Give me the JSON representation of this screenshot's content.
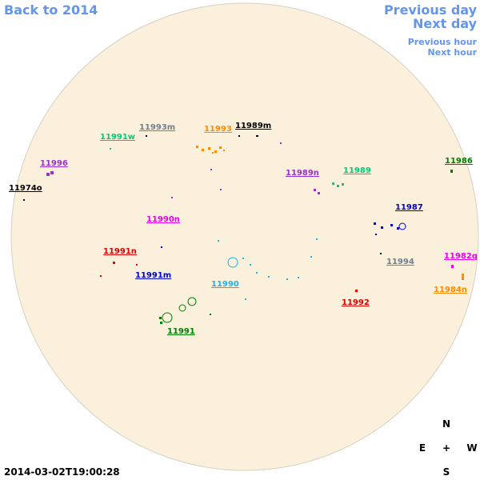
{
  "nav": {
    "back": "Back to 2014",
    "previous_day": "Previous day",
    "next_day": "Next day",
    "previous_hour": "Previous hour",
    "next_hour": "Next hour"
  },
  "regions": [
    "11993m",
    "11993",
    "11989m",
    "11991w",
    "11996",
    "11974o",
    "11986",
    "11989n",
    "11989",
    "11987",
    "11990n",
    "11991n",
    "11991m",
    "11990",
    "11994",
    "11982q",
    "11984n",
    "11992",
    "11991"
  ],
  "timestamp": "2014-03-02T19:00:28",
  "compass": {
    "n": "N",
    "e": "E",
    "center": "+",
    "w": "W",
    "s": "S"
  }
}
